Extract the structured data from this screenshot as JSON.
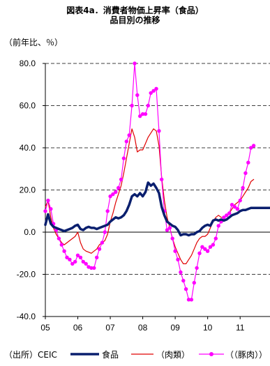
{
  "chart_data": {
    "type": "line",
    "title": [
      "図表4a．消費者物価上昇率（食品）",
      "品目別の推移"
    ],
    "unit_label": "（前年比、％）",
    "source": "（出所）CEIC",
    "x_start": 2005.0,
    "x_step": 0.08333,
    "xlim": [
      2005.0,
      2011.92
    ],
    "ylim": [
      -40,
      80
    ],
    "y_ticks": [
      "80.0",
      "60.0",
      "40.0",
      "20.0",
      "0.0",
      "-20.0",
      "-40.0"
    ],
    "y_tick_values": [
      80,
      60,
      40,
      20,
      0,
      -20,
      -40
    ],
    "x_ticks": [
      "05",
      "06",
      "07",
      "08",
      "09",
      "10",
      "11"
    ],
    "x_tick_values": [
      2005,
      2006,
      2007,
      2008,
      2009,
      2010,
      2011
    ],
    "grid": "dashed-horizontal",
    "series": [
      {
        "name": "食品",
        "color": "#0a1f6e",
        "style": "thick",
        "values": [
          3.5,
          8.5,
          4,
          2.5,
          2,
          1.5,
          1,
          0.5,
          1,
          1.5,
          2,
          3,
          3.5,
          1.5,
          1,
          2,
          2.5,
          2,
          2,
          1.5,
          2,
          2.5,
          3,
          3.5,
          5,
          6,
          7,
          6.5,
          7,
          8,
          10,
          13,
          17,
          18,
          17,
          18.5,
          17,
          19,
          23.5,
          22,
          23,
          21,
          18.5,
          12,
          8,
          5,
          4,
          3,
          2.5,
          1,
          -1.5,
          -1,
          -1,
          -1.5,
          -1,
          -1,
          0,
          0.5,
          2,
          3,
          3.5,
          3,
          5.5,
          6,
          5.5,
          6,
          5.5,
          6,
          7,
          8,
          8.5,
          9,
          10,
          10.5,
          10.5,
          11,
          11.5,
          11.5,
          11.5,
          11.5,
          11.5,
          11.5,
          11.5,
          11.5
        ]
      },
      {
        "name": "（肉類）",
        "color": "#e00000",
        "style": "thin",
        "values": [
          12,
          15,
          7,
          2,
          -1,
          -3,
          -5,
          -6,
          -5,
          -4,
          -3,
          -2,
          0,
          -5,
          -8,
          -9,
          -9.5,
          -10,
          -9,
          -8,
          -6,
          -5,
          -4,
          -1,
          5,
          9,
          14,
          18,
          22,
          28,
          35,
          42,
          49,
          45,
          38,
          39,
          39,
          42,
          45,
          47,
          49,
          48,
          41,
          26,
          15,
          7,
          2,
          -3,
          -7,
          -10,
          -13,
          -15,
          -15,
          -13,
          -11,
          -8,
          -5,
          -3,
          -2,
          -2,
          -1,
          2,
          5,
          7,
          8,
          7,
          7,
          8,
          9,
          11,
          13,
          14,
          15,
          17,
          19,
          21,
          24,
          25
        ]
      },
      {
        "name": "（（豚肉））",
        "color": "#ff00ff",
        "style": "marker",
        "values": [
          10,
          15,
          11,
          4,
          1,
          -3,
          -6,
          -9,
          -12,
          -13,
          -15,
          -14,
          -11,
          -12,
          -14,
          -15,
          -16.5,
          -17,
          -17,
          -12,
          -8,
          -5,
          0,
          10,
          17,
          18,
          19,
          21,
          25,
          35,
          43,
          46,
          60,
          80,
          65,
          55,
          56,
          56,
          60,
          66,
          67,
          68,
          48,
          25,
          10,
          1,
          2,
          -3,
          -9,
          -13,
          -19,
          -23,
          -27,
          -32,
          -32,
          -24,
          -17,
          -10,
          -7,
          -8,
          -9,
          -7,
          -6,
          -3,
          3,
          5,
          7,
          8,
          9,
          13,
          12,
          11,
          15,
          21,
          28,
          33,
          40,
          41
        ]
      }
    ]
  }
}
